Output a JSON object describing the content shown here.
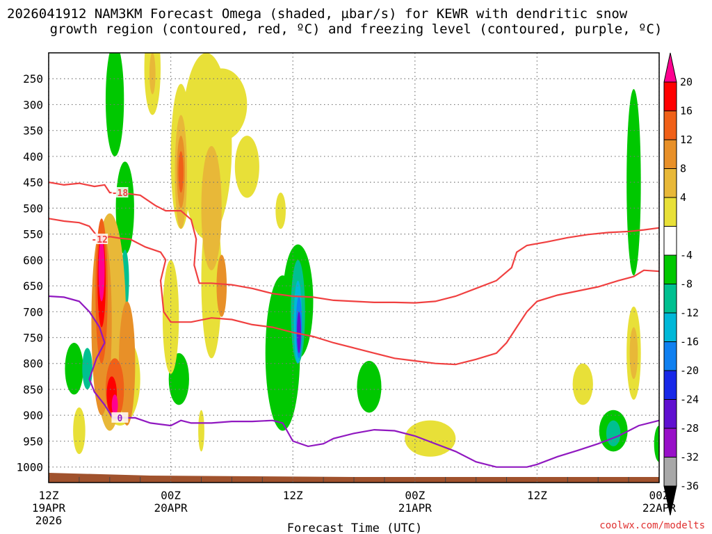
{
  "chart_data": {
    "type": "heatmap",
    "title_line1": "2026041912 NAM3KM Forecast Omega (shaded, µbar/s) for KEWR with dendritic snow",
    "title_line2": "growth region (contoured, red, ºC) and freezing level (contoured, purple, ºC)",
    "xlabel": "Forecast Time (UTC)",
    "credit": "coolwx.com/modelts",
    "x_range_hours": [
      0,
      60
    ],
    "x_ticks": [
      {
        "hour": 0,
        "line1": "12Z",
        "line2": "19APR",
        "line3": "2026"
      },
      {
        "hour": 12,
        "line1": "00Z",
        "line2": "20APR",
        "line3": ""
      },
      {
        "hour": 24,
        "line1": "12Z",
        "line2": "",
        "line3": ""
      },
      {
        "hour": 36,
        "line1": "00Z",
        "line2": "21APR",
        "line3": ""
      },
      {
        "hour": 48,
        "line1": "12Z",
        "line2": "",
        "line3": ""
      },
      {
        "hour": 60,
        "line1": "00Z",
        "line2": "22APR",
        "line3": ""
      }
    ],
    "y_ticks": [
      "250",
      "300",
      "350",
      "400",
      "450",
      "500",
      "550",
      "600",
      "650",
      "700",
      "750",
      "800",
      "850",
      "900",
      "950",
      "1000"
    ],
    "y_range_hpa": [
      200,
      1030
    ],
    "colorbar": {
      "labels": [
        "20",
        "16",
        "12",
        "8",
        "4",
        "-4",
        "-8",
        "-12",
        "-16",
        "-20",
        "-24",
        "-28",
        "-32",
        "-36"
      ],
      "colors": [
        "#ff0000",
        "#f06018",
        "#e89028",
        "#e8b838",
        "#e8e038",
        "#ffffff",
        "#00c800",
        "#00c090",
        "#00b8d8",
        "#1080f0",
        "#1828e8",
        "#6010d0",
        "#9810c8",
        "#a8a8a8"
      ],
      "top_arrow_color": "#ff0090",
      "bottom_arrow_color": "#000000"
    },
    "omega_shading": [
      {
        "level": "-4",
        "color": "#00c800",
        "center": [
          6.5,
          290
        ],
        "radius": [
          0.9,
          110
        ]
      },
      {
        "level": "-4",
        "color": "#00c800",
        "center": [
          7.5,
          500
        ],
        "radius": [
          0.9,
          90
        ]
      },
      {
        "level": "-4",
        "color": "#00c800",
        "center": [
          6.0,
          700
        ],
        "radius": [
          1.3,
          160
        ]
      },
      {
        "level": "-4",
        "color": "#00c800",
        "center": [
          2.5,
          810
        ],
        "radius": [
          0.9,
          50
        ]
      },
      {
        "level": "-4",
        "color": "#00c800",
        "center": [
          12.8,
          830
        ],
        "radius": [
          1.0,
          50
        ]
      },
      {
        "level": "-4",
        "color": "#00c800",
        "center": [
          23.0,
          780
        ],
        "radius": [
          1.7,
          150
        ]
      },
      {
        "level": "-4",
        "color": "#00c800",
        "center": [
          24.5,
          680
        ],
        "radius": [
          1.5,
          110
        ]
      },
      {
        "level": "-4",
        "color": "#00c800",
        "center": [
          31.5,
          845
        ],
        "radius": [
          1.2,
          50
        ]
      },
      {
        "level": "-4",
        "color": "#00c800",
        "center": [
          57.5,
          450
        ],
        "radius": [
          0.7,
          180
        ]
      },
      {
        "level": "-4",
        "color": "#00c800",
        "center": [
          55.5,
          930
        ],
        "radius": [
          1.4,
          40
        ]
      },
      {
        "level": "-4",
        "color": "#00c800",
        "center": [
          60.0,
          955
        ],
        "radius": [
          0.5,
          35
        ]
      },
      {
        "level": "-8",
        "color": "#00c090",
        "center": [
          3.8,
          810
        ],
        "radius": [
          0.5,
          40
        ]
      },
      {
        "level": "-8",
        "color": "#00c090",
        "center": [
          7.5,
          640
        ],
        "radius": [
          0.4,
          60
        ]
      },
      {
        "level": "-8",
        "color": "#00c090",
        "center": [
          24.5,
          700
        ],
        "radius": [
          0.7,
          100
        ]
      },
      {
        "level": "-8",
        "color": "#00c090",
        "center": [
          55.5,
          935
        ],
        "radius": [
          0.7,
          25
        ]
      },
      {
        "level": "-12",
        "color": "#00b8d8",
        "center": [
          24.5,
          720
        ],
        "radius": [
          0.4,
          80
        ]
      },
      {
        "level": "-16",
        "color": "#1080f0",
        "center": [
          24.6,
          730
        ],
        "radius": [
          0.3,
          60
        ]
      },
      {
        "level": "-24",
        "color": "#6010d0",
        "center": [
          24.6,
          740
        ],
        "radius": [
          0.2,
          40
        ]
      },
      {
        "level": "4",
        "color": "#e8e038",
        "center": [
          10.2,
          230
        ],
        "radius": [
          0.8,
          90
        ]
      },
      {
        "level": "4",
        "color": "#e8e038",
        "center": [
          13.0,
          400
        ],
        "radius": [
          1.0,
          140
        ]
      },
      {
        "level": "4",
        "color": "#e8e038",
        "center": [
          15.5,
          380
        ],
        "radius": [
          2.5,
          180
        ]
      },
      {
        "level": "4",
        "color": "#e8e038",
        "center": [
          17.0,
          300
        ],
        "radius": [
          2.5,
          70
        ]
      },
      {
        "level": "4",
        "color": "#e8e038",
        "center": [
          19.5,
          420
        ],
        "radius": [
          1.2,
          60
        ]
      },
      {
        "level": "4",
        "color": "#e8e038",
        "center": [
          16.0,
          640
        ],
        "radius": [
          1.0,
          150
        ]
      },
      {
        "level": "4",
        "color": "#e8e038",
        "center": [
          12.0,
          710
        ],
        "radius": [
          0.8,
          110
        ]
      },
      {
        "level": "4",
        "color": "#e8e038",
        "center": [
          22.8,
          505
        ],
        "radius": [
          0.5,
          35
        ]
      },
      {
        "level": "4",
        "color": "#e8e038",
        "center": [
          7.0,
          830
        ],
        "radius": [
          2.0,
          90
        ]
      },
      {
        "level": "4",
        "color": "#e8e038",
        "center": [
          3.0,
          930
        ],
        "radius": [
          0.6,
          45
        ]
      },
      {
        "level": "4",
        "color": "#e8e038",
        "center": [
          15.0,
          930
        ],
        "radius": [
          0.3,
          40
        ]
      },
      {
        "level": "4",
        "color": "#e8e038",
        "center": [
          37.5,
          945
        ],
        "radius": [
          2.5,
          35
        ]
      },
      {
        "level": "4",
        "color": "#e8e038",
        "center": [
          52.5,
          840
        ],
        "radius": [
          1.0,
          40
        ]
      },
      {
        "level": "4",
        "color": "#e8e038",
        "center": [
          57.5,
          780
        ],
        "radius": [
          0.7,
          90
        ]
      },
      {
        "level": "8",
        "color": "#e8b838",
        "center": [
          10.2,
          240
        ],
        "radius": [
          0.3,
          40
        ]
      },
      {
        "level": "8",
        "color": "#e8b838",
        "center": [
          13.0,
          430
        ],
        "radius": [
          0.6,
          110
        ]
      },
      {
        "level": "8",
        "color": "#e8b838",
        "center": [
          16.0,
          500
        ],
        "radius": [
          1.0,
          120
        ]
      },
      {
        "level": "8",
        "color": "#e8b838",
        "center": [
          6.0,
          720
        ],
        "radius": [
          1.6,
          210
        ]
      },
      {
        "level": "8",
        "color": "#e8b838",
        "center": [
          57.5,
          780
        ],
        "radius": [
          0.4,
          50
        ]
      },
      {
        "level": "12",
        "color": "#e89028",
        "center": [
          13.0,
          430
        ],
        "radius": [
          0.4,
          70
        ]
      },
      {
        "level": "12",
        "color": "#e89028",
        "center": [
          5.2,
          720
        ],
        "radius": [
          1.0,
          180
        ]
      },
      {
        "level": "12",
        "color": "#e89028",
        "center": [
          7.7,
          800
        ],
        "radius": [
          0.8,
          120
        ]
      },
      {
        "level": "12",
        "color": "#e89028",
        "center": [
          17.0,
          650
        ],
        "radius": [
          0.5,
          60
        ]
      },
      {
        "level": "16",
        "color": "#f06018",
        "center": [
          13.0,
          430
        ],
        "radius": [
          0.25,
          40
        ]
      },
      {
        "level": "16",
        "color": "#f06018",
        "center": [
          5.2,
          660
        ],
        "radius": [
          0.6,
          140
        ]
      },
      {
        "level": "16",
        "color": "#f06018",
        "center": [
          6.5,
          850
        ],
        "radius": [
          0.9,
          60
        ]
      },
      {
        "level": "20",
        "color": "#ff0000",
        "center": [
          5.2,
          640
        ],
        "radius": [
          0.4,
          90
        ]
      },
      {
        "level": "20",
        "color": "#ff0000",
        "center": [
          6.2,
          860
        ],
        "radius": [
          0.5,
          35
        ]
      },
      {
        "level": ">20",
        "color": "#ff0090",
        "center": [
          5.2,
          620
        ],
        "radius": [
          0.3,
          60
        ]
      },
      {
        "level": ">20",
        "color": "#ff0090",
        "center": [
          6.5,
          880
        ],
        "radius": [
          0.3,
          20
        ]
      }
    ],
    "contours": [
      {
        "label": "-18",
        "color": "#f04040",
        "label_at": [
          7.0,
          470
        ],
        "points": [
          [
            0,
            450
          ],
          [
            1.5,
            455
          ],
          [
            3,
            452
          ],
          [
            4.5,
            458
          ],
          [
            5.5,
            455
          ],
          [
            6.0,
            470
          ],
          [
            7.0,
            470
          ],
          [
            9.0,
            475
          ],
          [
            10.5,
            495
          ],
          [
            11.5,
            505
          ],
          [
            13.0,
            505
          ],
          [
            14.0,
            522
          ],
          [
            14.5,
            560
          ],
          [
            14.3,
            610
          ],
          [
            14.8,
            645
          ],
          [
            16.0,
            645
          ],
          [
            18.0,
            648
          ],
          [
            20.0,
            655
          ],
          [
            22.0,
            665
          ],
          [
            24.0,
            670
          ],
          [
            26.0,
            672
          ],
          [
            28.0,
            678
          ],
          [
            30.0,
            680
          ],
          [
            32.0,
            682
          ],
          [
            34.0,
            682
          ],
          [
            36.0,
            683
          ],
          [
            38.0,
            680
          ],
          [
            40.0,
            670
          ],
          [
            42.0,
            655
          ],
          [
            44.0,
            640
          ],
          [
            45.5,
            615
          ],
          [
            46.0,
            585
          ],
          [
            47.0,
            572
          ],
          [
            49.0,
            565
          ],
          [
            51.0,
            557
          ],
          [
            53.0,
            551
          ],
          [
            55.0,
            547
          ],
          [
            57.0,
            545
          ],
          [
            58.5,
            542
          ],
          [
            60,
            538
          ]
        ]
      },
      {
        "label": "-12",
        "color": "#f04040",
        "label_at": [
          5.0,
          560
        ],
        "points": [
          [
            0,
            520
          ],
          [
            1.5,
            525
          ],
          [
            3,
            528
          ],
          [
            4.0,
            535
          ],
          [
            5.0,
            560
          ],
          [
            6.0,
            555
          ],
          [
            7.0,
            558
          ],
          [
            8.0,
            560
          ],
          [
            9.5,
            575
          ],
          [
            11.0,
            585
          ],
          [
            11.5,
            600
          ],
          [
            11.0,
            640
          ],
          [
            11.3,
            700
          ],
          [
            12.0,
            720
          ],
          [
            14.0,
            720
          ],
          [
            16.0,
            712
          ],
          [
            18.0,
            715
          ],
          [
            20.0,
            725
          ],
          [
            22.0,
            730
          ],
          [
            24.0,
            740
          ],
          [
            26.0,
            748
          ],
          [
            28.0,
            760
          ],
          [
            30.0,
            770
          ],
          [
            32.0,
            780
          ],
          [
            34.0,
            790
          ],
          [
            36.0,
            795
          ],
          [
            38.0,
            800
          ],
          [
            40.0,
            802
          ],
          [
            42.0,
            792
          ],
          [
            44.0,
            780
          ],
          [
            45.0,
            760
          ],
          [
            46.0,
            730
          ],
          [
            47.0,
            700
          ],
          [
            48.0,
            680
          ],
          [
            50.0,
            668
          ],
          [
            52.0,
            660
          ],
          [
            54.0,
            652
          ],
          [
            56.0,
            640
          ],
          [
            57.5,
            632
          ],
          [
            58.5,
            620
          ],
          [
            60,
            622
          ]
        ]
      },
      {
        "label": "0",
        "color": "#9018c0",
        "label_at": [
          7.0,
          905
        ],
        "points": [
          [
            0,
            670
          ],
          [
            1.5,
            672
          ],
          [
            3,
            680
          ],
          [
            4.0,
            700
          ],
          [
            5.0,
            730
          ],
          [
            5.5,
            760
          ],
          [
            4.7,
            790
          ],
          [
            4.0,
            830
          ],
          [
            4.5,
            855
          ],
          [
            5.5,
            880
          ],
          [
            6.3,
            905
          ],
          [
            7.5,
            905
          ],
          [
            8.5,
            905
          ],
          [
            10.0,
            915
          ],
          [
            12.0,
            920
          ],
          [
            13.0,
            910
          ],
          [
            14.0,
            915
          ],
          [
            16.0,
            915
          ],
          [
            18.0,
            912
          ],
          [
            20.0,
            912
          ],
          [
            22.0,
            910
          ],
          [
            23.0,
            915
          ],
          [
            24.0,
            950
          ],
          [
            25.5,
            960
          ],
          [
            27.0,
            955
          ],
          [
            28.0,
            945
          ],
          [
            30.0,
            935
          ],
          [
            32.0,
            928
          ],
          [
            34.0,
            930
          ],
          [
            36.0,
            940
          ],
          [
            38.0,
            955
          ],
          [
            40.0,
            970
          ],
          [
            42.0,
            990
          ],
          [
            44.0,
            1000
          ],
          [
            45.5,
            1000
          ],
          [
            47.0,
            1000
          ],
          [
            48.0,
            995
          ],
          [
            50.0,
            980
          ],
          [
            52.0,
            968
          ],
          [
            54.0,
            955
          ],
          [
            56.0,
            940
          ],
          [
            58.0,
            920
          ],
          [
            60,
            910
          ]
        ]
      }
    ]
  }
}
